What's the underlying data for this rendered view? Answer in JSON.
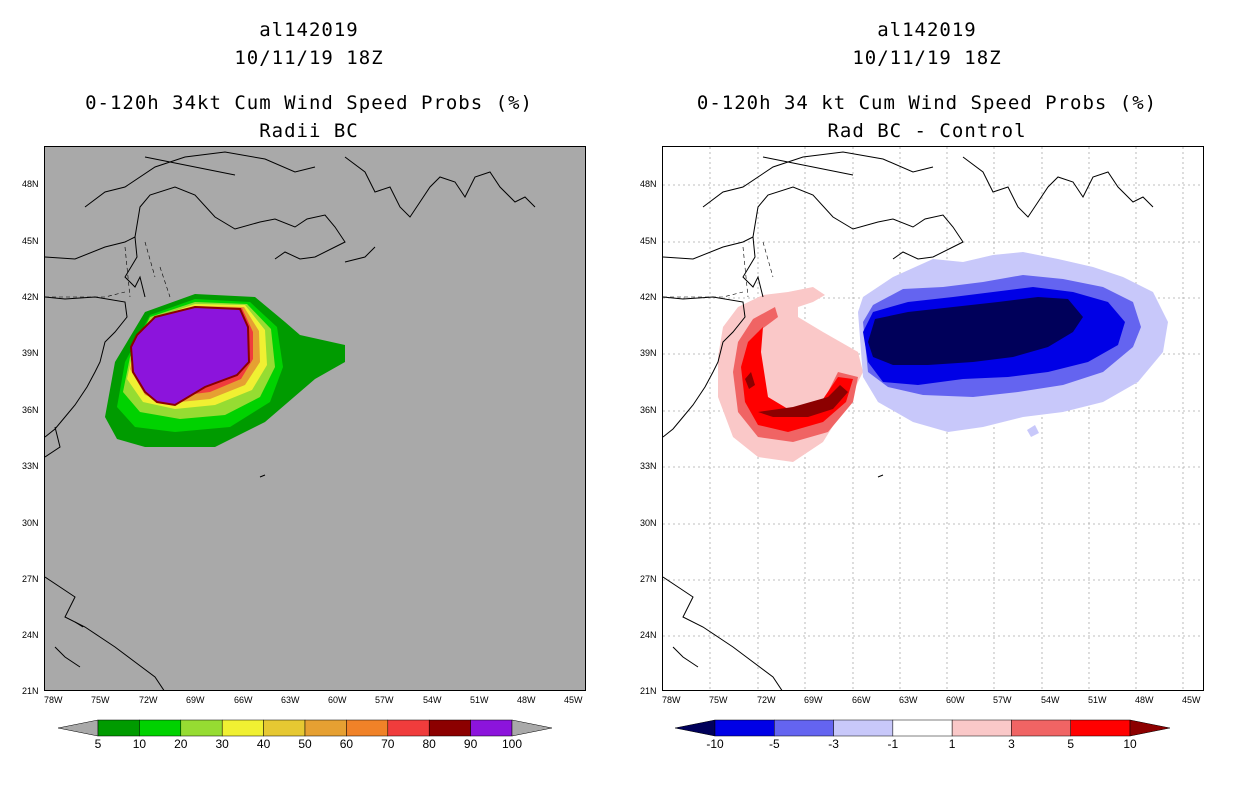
{
  "colors": {
    "left_background": "#a9a9a9",
    "right_background": "#ffffff",
    "land_outline": "#000000"
  },
  "left_panel": {
    "title_line1": "al142019",
    "title_line2": "10/11/19 18Z",
    "title_line3": "0-120h 34kt Cum Wind Speed Probs (%)",
    "title_line4": "Radii BC",
    "lat_labels": [
      "48N",
      "45N",
      "42N",
      "39N",
      "36N",
      "33N",
      "30N",
      "27N",
      "24N",
      "21N"
    ],
    "lon_labels": [
      "78W",
      "75W",
      "72W",
      "69W",
      "66W",
      "63W",
      "60W",
      "57W",
      "54W",
      "51W",
      "48W",
      "45W"
    ],
    "colorbar": {
      "labels": [
        "5",
        "10",
        "20",
        "30",
        "40",
        "50",
        "60",
        "70",
        "80",
        "90",
        "100"
      ],
      "colors": [
        "#a9a9a9",
        "#009b00",
        "#00d200",
        "#96dc32",
        "#f0f032",
        "#e6c832",
        "#e6a032",
        "#f08228",
        "#f03c3c",
        "#8c0000",
        "#8c14dc",
        "#a9a9a9"
      ]
    }
  },
  "right_panel": {
    "title_line1": "al142019",
    "title_line2": "10/11/19 18Z",
    "title_line3": "0-120h 34 kt Cum Wind Speed Probs (%)",
    "title_line4": "Rad BC - Control",
    "lat_labels": [
      "48N",
      "45N",
      "42N",
      "39N",
      "36N",
      "33N",
      "30N",
      "27N",
      "24N",
      "21N"
    ],
    "lon_labels": [
      "78W",
      "75W",
      "72W",
      "69W",
      "66W",
      "63W",
      "60W",
      "57W",
      "54W",
      "51W",
      "48W",
      "45W"
    ],
    "colorbar": {
      "labels": [
        "-10",
        "-5",
        "-3",
        "-1",
        "1",
        "3",
        "5",
        "10"
      ],
      "colors": [
        "#00005a",
        "#0000e6",
        "#6464f0",
        "#c8c8fa",
        "#ffffff",
        "#fac8c8",
        "#f06464",
        "#ff0000",
        "#8c0000"
      ]
    }
  }
}
